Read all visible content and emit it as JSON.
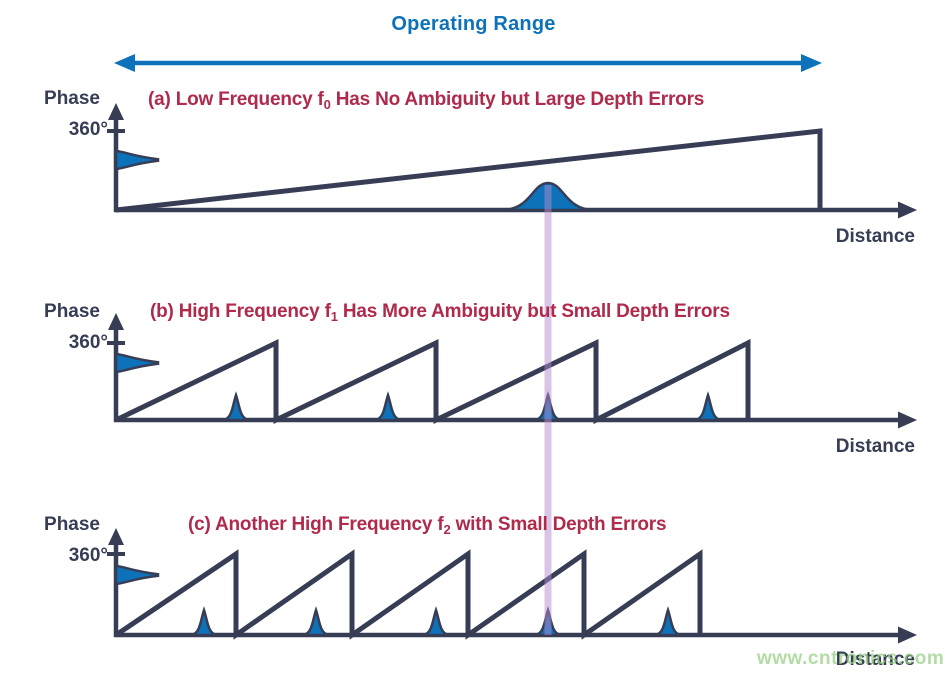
{
  "colors": {
    "navy": "#363D55",
    "blue": "#0D72B9",
    "crimson": "#B02A4B",
    "purple": "#B58BD0",
    "watermark_green": "#9ACF87",
    "background": "#FFFFFF"
  },
  "header": {
    "operating_range_label": "Operating Range"
  },
  "watermark": {
    "text": "www.cntronics.com"
  },
  "panels": [
    {
      "id": "a",
      "title_prefix": "(a) Low Frequency f",
      "title_sub": "0",
      "title_suffix": " Has No Ambiguity but Large Depth Errors",
      "phase_label": "Phase",
      "phase_max_label": "360°",
      "distance_label": "Distance"
    },
    {
      "id": "b",
      "title_prefix": "(b) High Frequency f",
      "title_sub": "1",
      "title_suffix": " Has More Ambiguity but Small Depth Errors",
      "phase_label": "Phase",
      "phase_max_label": "360°",
      "distance_label": "Distance"
    },
    {
      "id": "c",
      "title_prefix": "(c) Another High Frequency f",
      "title_sub": "2",
      "title_suffix": " with Small Depth Errors",
      "phase_label": "Phase",
      "phase_max_label": "360°",
      "distance_label": "Distance"
    }
  ],
  "chart_data": [
    {
      "type": "line",
      "panel": "a",
      "title": "(a) Low Frequency f0 Has No Ambiguity but Large Depth Errors",
      "xlabel": "Distance",
      "ylabel": "Phase",
      "ylim": [
        0,
        360
      ],
      "y_ticks": [
        360
      ],
      "x_range_normalized": [
        0,
        1
      ],
      "waveform": "sawtooth",
      "phase_resets_x": [
        0.88
      ],
      "measurement_peaks_x": [
        0.54
      ],
      "peak_style": "broad",
      "true_distance_x": 0.54,
      "phase_axis_noise_peak": true,
      "operating_range_x": [
        0,
        0.88
      ],
      "legend": "none",
      "grid": false
    },
    {
      "type": "line",
      "panel": "b",
      "title": "(b) High Frequency f1 Has More Ambiguity but Small Depth Errors",
      "xlabel": "Distance",
      "ylabel": "Phase",
      "ylim": [
        0,
        360
      ],
      "y_ticks": [
        360
      ],
      "x_range_normalized": [
        0,
        1
      ],
      "waveform": "sawtooth",
      "phase_resets_x": [
        0.2,
        0.4,
        0.6,
        0.79
      ],
      "measurement_peaks_x": [
        0.15,
        0.34,
        0.54,
        0.74
      ],
      "peak_style": "narrow",
      "true_distance_x": 0.54,
      "phase_axis_noise_peak": true,
      "legend": "none",
      "grid": false
    },
    {
      "type": "line",
      "panel": "c",
      "title": "(c) Another High Frequency f2 with Small Depth Errors",
      "xlabel": "Distance",
      "ylabel": "Phase",
      "ylim": [
        0,
        360
      ],
      "y_ticks": [
        360
      ],
      "x_range_normalized": [
        0,
        1
      ],
      "waveform": "sawtooth",
      "phase_resets_x": [
        0.15,
        0.295,
        0.44,
        0.585,
        0.73
      ],
      "measurement_peaks_x": [
        0.11,
        0.25,
        0.4,
        0.54,
        0.69
      ],
      "peak_style": "narrow",
      "true_distance_x": 0.54,
      "phase_axis_noise_peak": true,
      "legend": "none",
      "grid": false
    }
  ]
}
